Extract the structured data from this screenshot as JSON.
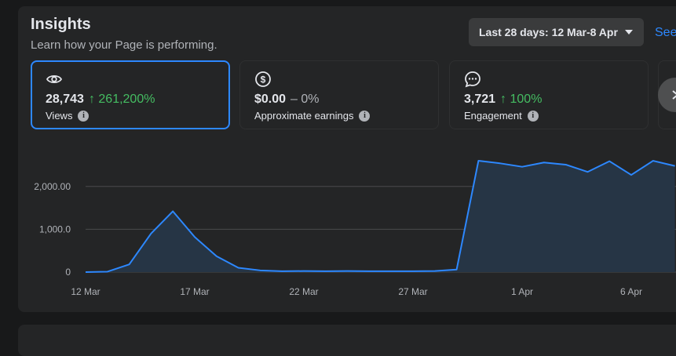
{
  "header": {
    "title": "Insights",
    "subtitle": "Learn how your Page is performing.",
    "date_range": "Last 28 days: 12 Mar-8 Apr",
    "see_link": "See"
  },
  "metrics": [
    {
      "icon": "eye-icon",
      "value": "28,743",
      "change": "261,200%",
      "change_direction": "up",
      "label": "Views",
      "selected": true
    },
    {
      "icon": "dollar-icon",
      "value": "$0.00",
      "change": "– 0%",
      "change_direction": "neutral",
      "label": "Approximate earnings",
      "selected": false
    },
    {
      "icon": "chat-icon",
      "value": "3,721",
      "change": "100%",
      "change_direction": "up",
      "label": "Engagement",
      "selected": false
    }
  ],
  "colors": {
    "accent": "#2d88ff",
    "positive": "#45bd62",
    "background": "#18191a",
    "card": "#242526"
  },
  "chart_data": {
    "type": "area",
    "x": [
      "12 Mar",
      "13 Mar",
      "14 Mar",
      "15 Mar",
      "16 Mar",
      "17 Mar",
      "18 Mar",
      "19 Mar",
      "20 Mar",
      "21 Mar",
      "22 Mar",
      "23 Mar",
      "24 Mar",
      "25 Mar",
      "26 Mar",
      "27 Mar",
      "28 Mar",
      "29 Mar",
      "30 Mar",
      "31 Mar",
      "1 Apr",
      "2 Apr",
      "3 Apr",
      "4 Apr",
      "5 Apr",
      "6 Apr",
      "7 Apr",
      "8 Apr"
    ],
    "series": [
      {
        "values": [
          0,
          10,
          180,
          900,
          1420,
          820,
          370,
          100,
          40,
          20,
          25,
          20,
          25,
          20,
          20,
          20,
          25,
          60,
          2600,
          2540,
          2460,
          2560,
          2510,
          2340,
          2590,
          2270,
          2600,
          2480
        ]
      }
    ],
    "xticks": [
      "12 Mar",
      "17 Mar",
      "22 Mar",
      "27 Mar",
      "1 Apr",
      "6 Apr"
    ],
    "yticks": [
      "0",
      "1,000.0",
      "2,000.00"
    ],
    "ylim": [
      0,
      2600
    ],
    "grid": true,
    "legend": "none",
    "line_color": "#2d88ff",
    "fill_color": "#263545"
  }
}
